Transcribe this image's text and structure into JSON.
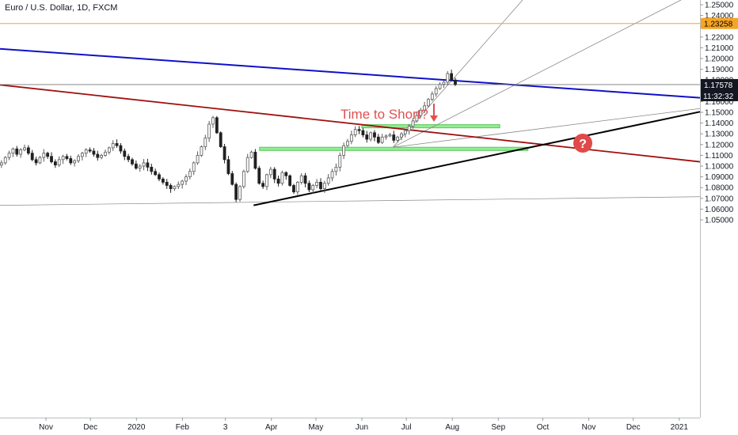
{
  "chart_data": {
    "type": "candlestick",
    "title": "Euro / U.S. Dollar, 1D, FXCM",
    "ylim": [
      1.045,
      1.255
    ],
    "y_ticks": [
      "1.25000",
      "1.24000",
      "1.23000",
      "1.22000",
      "1.21000",
      "1.20000",
      "1.19000",
      "1.18000",
      "1.17000",
      "1.16000",
      "1.15000",
      "1.14000",
      "1.13000",
      "1.12000",
      "1.11000",
      "1.10000",
      "1.09000",
      "1.08000",
      "1.07000",
      "1.06000",
      "1.05000"
    ],
    "x_ticks": [
      "Nov",
      "Dec",
      "2020",
      "Feb",
      "3",
      "Apr",
      "May",
      "Jun",
      "Jul",
      "Aug",
      "Sep",
      "Oct",
      "Nov",
      "Dec",
      "2021"
    ],
    "last_price": {
      "value": "1.17578",
      "countdown": "11:32:32"
    },
    "alert_level": {
      "value": "1.23258",
      "color": "#f5a524"
    },
    "annotations": {
      "note": "Time to Short?",
      "question": "?"
    },
    "colors": {
      "bull": "#5a5a5a",
      "bear": "#202020",
      "blue_trendline": "#1010c8",
      "red_trendline": "#a01010",
      "black_trendline": "#000000",
      "fan_lines": "#888888",
      "zone": "#90ee90",
      "note": "#e05050"
    },
    "trendlines": [
      {
        "name": "blue-resistance",
        "from": [
          "2019-10-01",
          1.209
        ],
        "to": [
          "2021-01-15",
          1.1635
        ]
      },
      {
        "name": "red-resistance",
        "from": [
          "2019-10-01",
          1.1755
        ],
        "to": [
          "2021-01-15",
          1.104
        ]
      },
      {
        "name": "black-support",
        "from": [
          "2020-03-20",
          1.0635
        ],
        "to": [
          "2021-01-15",
          1.1505
        ]
      }
    ],
    "zones": [
      {
        "from": "2020-06-01",
        "to": "2020-09-02",
        "top": 1.1385,
        "bottom": 1.1365
      },
      {
        "from": "2020-03-24",
        "to": "2020-09-21",
        "top": 1.1175,
        "bottom": 1.1145
      }
    ],
    "series": [
      {
        "name": "EURUSD",
        "close": [
          1.103,
          1.108,
          1.112,
          1.116,
          1.111,
          1.115,
          1.117,
          1.112,
          1.106,
          1.103,
          1.108,
          1.112,
          1.109,
          1.104,
          1.101,
          1.106,
          1.109,
          1.107,
          1.103,
          1.105,
          1.109,
          1.112,
          1.115,
          1.114,
          1.111,
          1.108,
          1.11,
          1.113,
          1.117,
          1.121,
          1.119,
          1.114,
          1.109,
          1.106,
          1.102,
          1.098,
          1.1,
          1.103,
          1.099,
          1.095,
          1.092,
          1.088,
          1.085,
          1.082,
          1.079,
          1.081,
          1.083,
          1.086,
          1.09,
          1.095,
          1.103,
          1.11,
          1.118,
          1.126,
          1.139,
          1.145,
          1.131,
          1.118,
          1.106,
          1.093,
          1.083,
          1.069,
          1.081,
          1.095,
          1.108,
          1.113,
          1.098,
          1.084,
          1.081,
          1.092,
          1.097,
          1.088,
          1.084,
          1.094,
          1.091,
          1.082,
          1.076,
          1.085,
          1.091,
          1.084,
          1.078,
          1.082,
          1.085,
          1.079,
          1.084,
          1.089,
          1.095,
          1.099,
          1.11,
          1.119,
          1.123,
          1.129,
          1.134,
          1.133,
          1.129,
          1.125,
          1.131,
          1.127,
          1.122,
          1.127,
          1.128,
          1.129,
          1.124,
          1.127,
          1.13,
          1.133,
          1.137,
          1.142,
          1.147,
          1.152,
          1.156,
          1.162,
          1.167,
          1.172,
          1.176,
          1.178,
          1.186,
          1.18,
          1.176
        ]
      }
    ]
  }
}
